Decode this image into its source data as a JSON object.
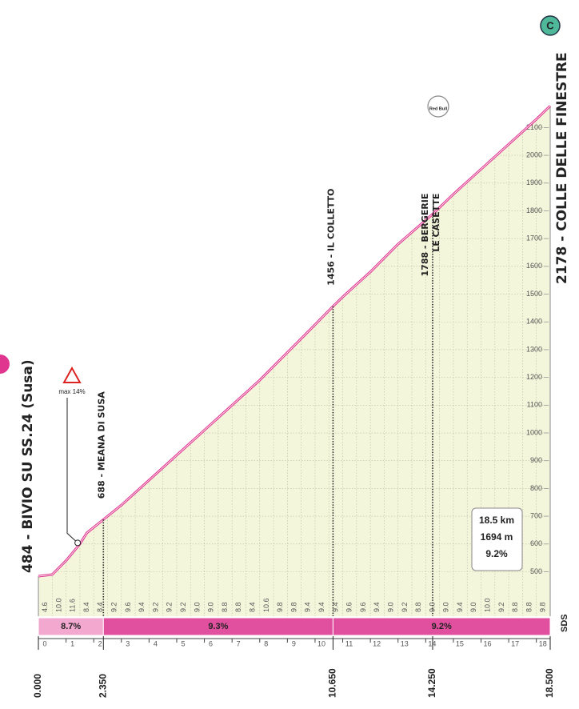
{
  "chart_data": {
    "type": "area",
    "x": [
      0,
      0.5,
      1,
      1.5,
      1.75,
      2.35,
      3,
      4,
      5,
      6,
      7,
      8,
      9,
      10,
      10.65,
      11,
      12,
      13,
      14.25,
      15,
      16,
      17,
      18,
      18.5
    ],
    "values": [
      484,
      490,
      540,
      600,
      640,
      688,
      740,
      830,
      920,
      1010,
      1100,
      1190,
      1290,
      1390,
      1456,
      1490,
      1580,
      1680,
      1788,
      1860,
      1950,
      2040,
      2130,
      2178
    ],
    "color": "#e0368f",
    "fill": "#f4f6dc",
    "xlim": [
      0,
      18.5
    ],
    "xticks": [
      0,
      1,
      2,
      3,
      4,
      5,
      6,
      7,
      8,
      9,
      10,
      11,
      12,
      13,
      14,
      15,
      16,
      17,
      18
    ],
    "ylim": [
      340,
      2300
    ],
    "yticks": [
      500,
      600,
      700,
      800,
      900,
      1000,
      1100,
      1200,
      1300,
      1400,
      1500,
      1600,
      1700,
      1800,
      1900,
      2000,
      2100
    ],
    "grid": true,
    "segment_gradients": [
      "4.6",
      "10.0",
      "11.6",
      "8.4",
      "8.4",
      "9.2",
      "9.6",
      "9.4",
      "9.2",
      "9.2",
      "9.2",
      "9.0",
      "9.0",
      "8.8",
      "8.8",
      "8.4",
      "10.6",
      "9.8",
      "9.8",
      "9.4",
      "9.4",
      "9.4",
      "9.6",
      "9.6",
      "9.4",
      "9.0",
      "9.2",
      "8.8",
      "9.0",
      "9.0",
      "9.4",
      "9.0",
      "10.0",
      "9.2",
      "8.8",
      "8.8",
      "9.8"
    ],
    "bands": [
      {
        "from": 0,
        "to": 2.35,
        "label": "8.7%",
        "color": "#f2a8cf"
      },
      {
        "from": 2.35,
        "to": 10.65,
        "label": "9.3%",
        "color": "#e0509f"
      },
      {
        "from": 10.65,
        "to": 18.5,
        "label": "9.2%",
        "color": "#e0509f"
      }
    ],
    "distance_markers": [
      {
        "value": 0,
        "label": "0.000"
      },
      {
        "value": 2.35,
        "label": "2.350"
      },
      {
        "value": 10.65,
        "label": "10.650"
      },
      {
        "value": 14.25,
        "label": "14.250"
      },
      {
        "value": 18.5,
        "label": "18.500"
      }
    ],
    "places": [
      {
        "km": 2.35,
        "elevation": 688,
        "lines": [
          "688 - MEANA DI SUSA"
        ]
      },
      {
        "km": 10.65,
        "elevation": 1456,
        "lines": [
          "1456 - IL COLLETTO"
        ]
      },
      {
        "km": 14.25,
        "elevation": 1788,
        "lines": [
          "1788 - BERGERIE",
          "LE CASETTE"
        ]
      }
    ],
    "start": "484 - BIVIO SU SS.24 (Susa)",
    "finish": "2178 - COLLE DELLE FINESTRE",
    "max_gradient": {
      "text": "max 14%",
      "km": 1.42,
      "elevation": 604
    },
    "summary": [
      "18.5 km",
      "1694 m",
      "9.2%"
    ],
    "category_badge": "C",
    "sprint_icon": "Red Bull",
    "footer_mark": "SDS"
  }
}
